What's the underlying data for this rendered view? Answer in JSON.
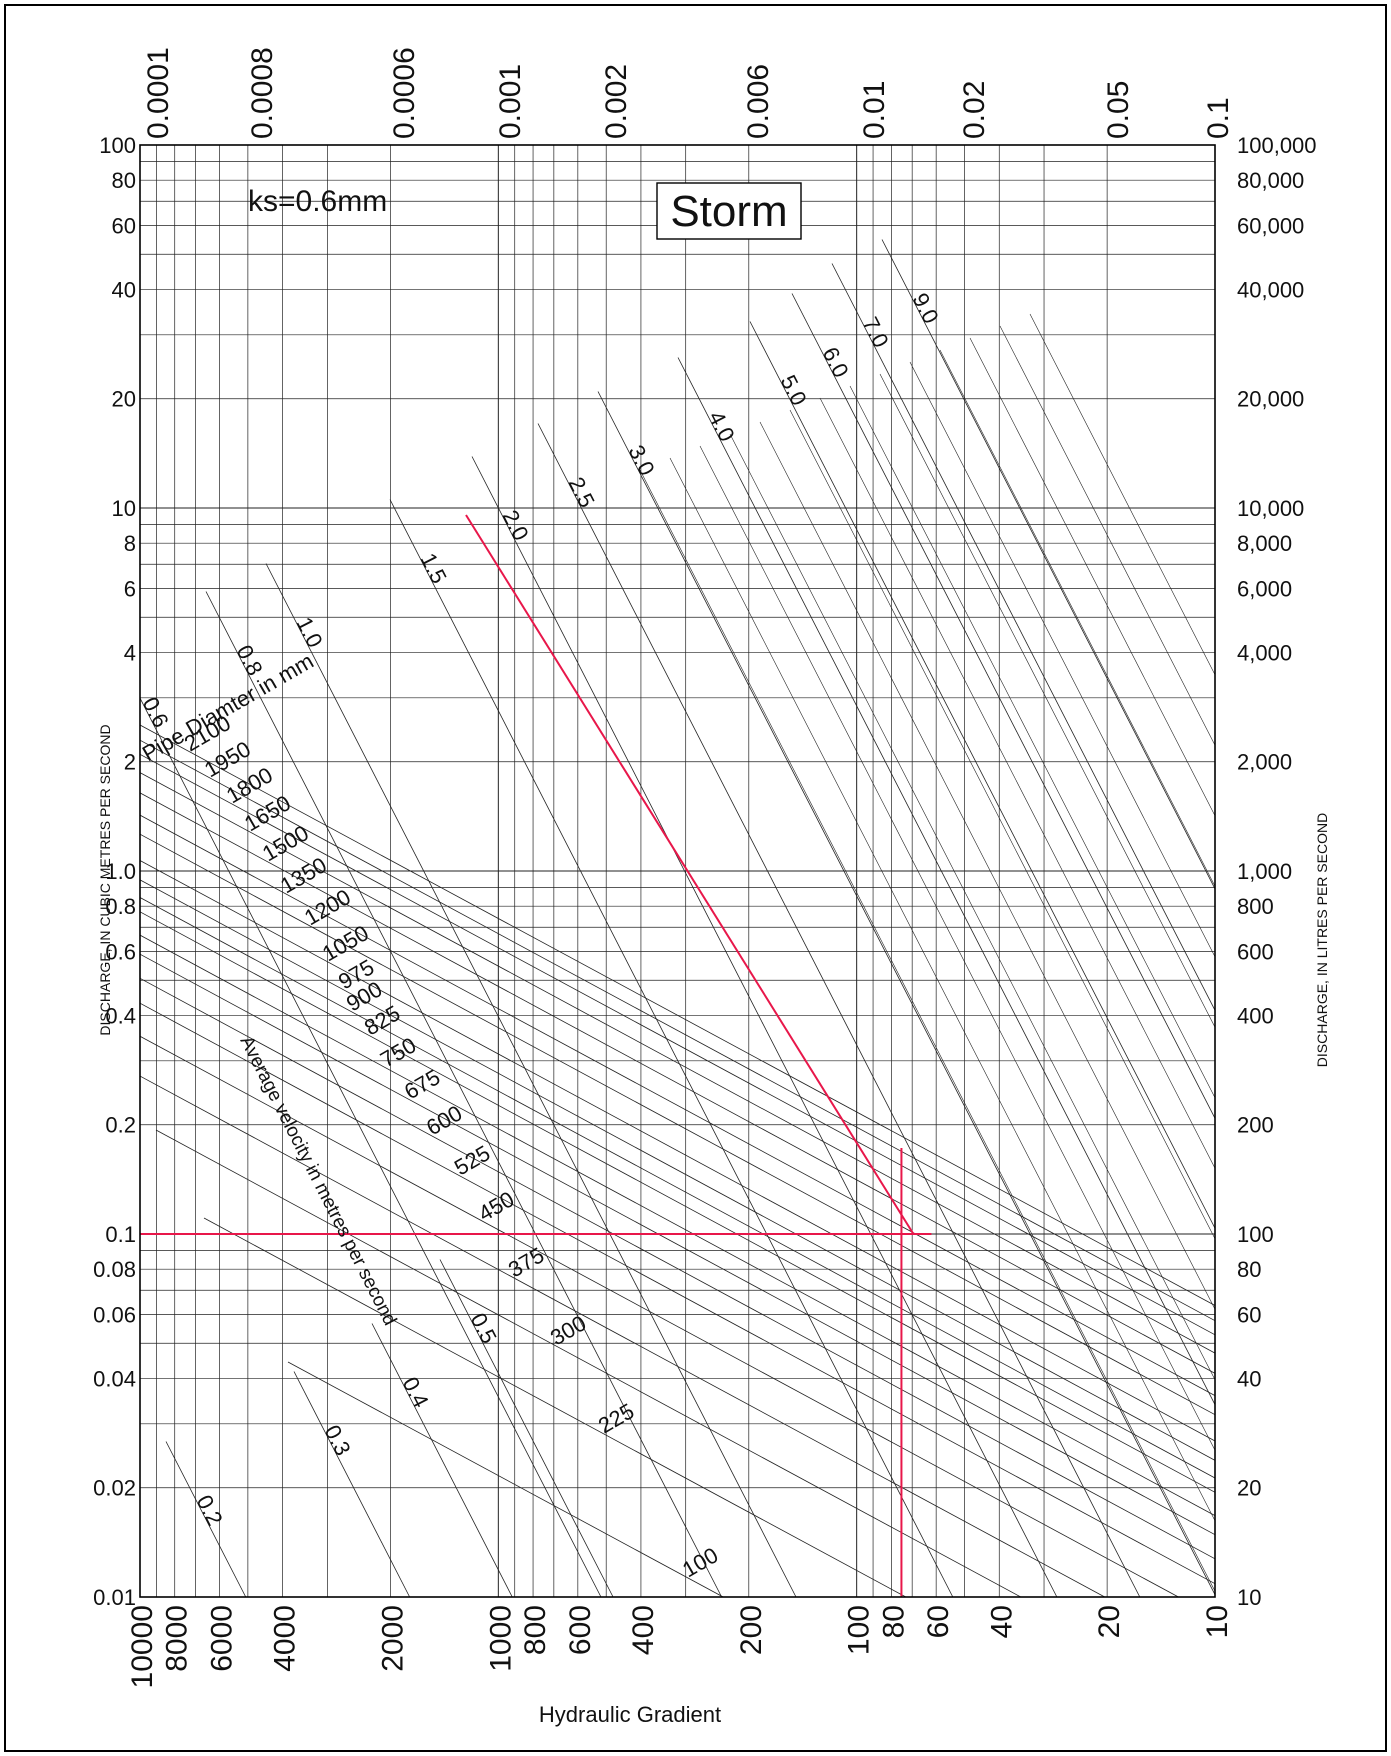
{
  "chart_data": {
    "type": "line",
    "title": "Storm",
    "annotation": "ks=0.6mm",
    "xlabel": "Hydraulic Gradient",
    "ylabel_left": "DISCHARGE, IN CUBIC METRES PER SECOND",
    "ylabel_right": "DISCHARGE, IN LITRES PER SECOND",
    "x_scale": "log",
    "y_scale": "log",
    "xlim": [
      10000,
      10
    ],
    "ylim": [
      0.01,
      100
    ],
    "grid": true,
    "legend": "none",
    "top_ticks": [
      "0.0001",
      "0.0008",
      "0.0006",
      "0.001",
      "0.002",
      "0.006",
      "0.01",
      "0.02",
      "0.05",
      "0.1"
    ],
    "bottom_ticks": [
      "10000",
      "8000",
      "6000",
      "4000",
      "2000",
      "1000",
      "800",
      "600",
      "400",
      "200",
      "100",
      "80",
      "60",
      "40",
      "20",
      "10"
    ],
    "left_ticks": [
      "100",
      "80",
      "60",
      "40",
      "20",
      "10",
      "8",
      "6",
      "4",
      "2",
      "1.0",
      "0.8",
      "0.6",
      "0.4",
      "0.2",
      "0.1",
      "0.08",
      "0.06",
      "0.04",
      "0.02",
      "0.01"
    ],
    "right_ticks": [
      "100,000",
      "80,000",
      "60,000",
      "40,000",
      "20,000",
      "10,000",
      "8,000",
      "6,000",
      "4,000",
      "2,000",
      "1,000",
      "800",
      "600",
      "400",
      "200",
      "100",
      "80",
      "60",
      "40",
      "20",
      "10"
    ],
    "diameter_title": "Pipe Diamter in mm",
    "diameters": [
      "2100",
      "1950",
      "1800",
      "1650",
      "1500",
      "1350",
      "1200",
      "1050",
      "975",
      "900",
      "825",
      "750",
      "675",
      "600",
      "525",
      "450",
      "375",
      "300",
      "225",
      "100"
    ],
    "velocity_title": "Average velocity in metres per second",
    "velocities": [
      "0.2",
      "0.3",
      "0.4",
      "0.5",
      "0.6",
      "0.8",
      "1.0",
      "1.5",
      "2.0",
      "2.5",
      "3.0",
      "4.0",
      "5.0",
      "6.0",
      "7.0",
      "9.0"
    ],
    "example": {
      "discharge": 0.1,
      "hydraulic_gradient": 75,
      "color": "#e8174a"
    },
    "colors": {
      "grid": "#222222",
      "example": "#e8174a"
    }
  }
}
